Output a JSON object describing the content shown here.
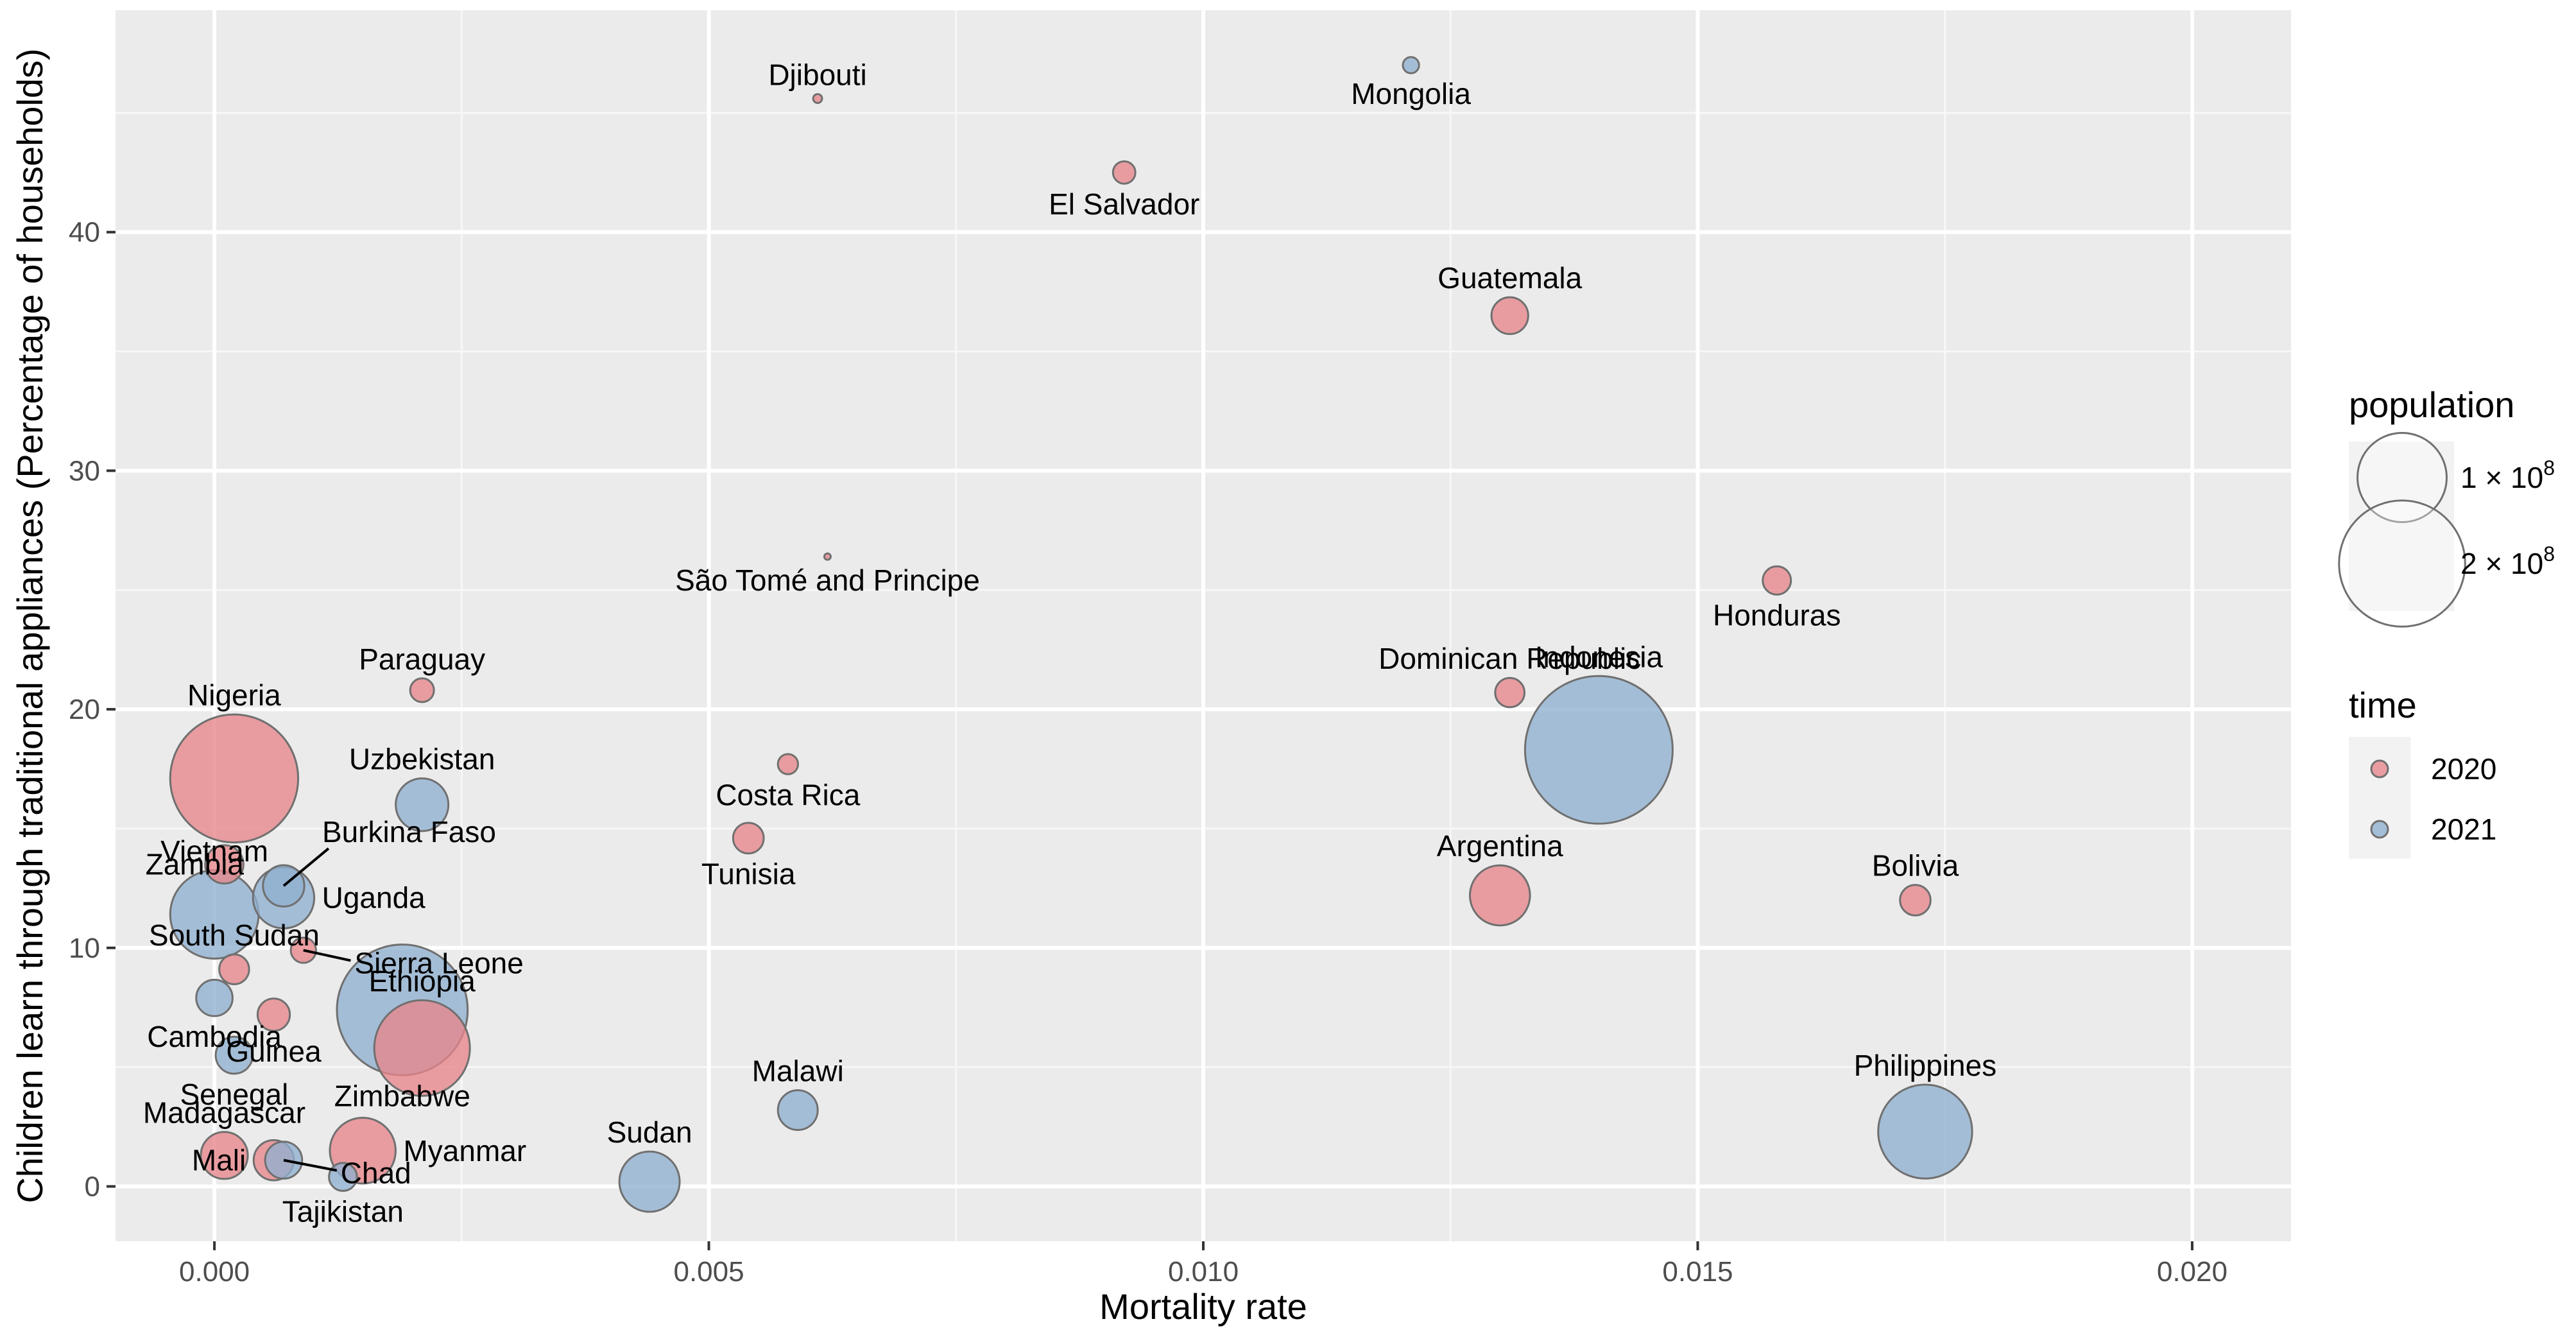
{
  "chart_data": {
    "type": "scatter",
    "title": "",
    "xlabel": "Mortality rate",
    "ylabel": "Children learn through traditional appliances (Percentage of households)",
    "xlim": [
      -0.001,
      0.021
    ],
    "ylim": [
      -2.3,
      49.3
    ],
    "grid": true,
    "x_ticks": [
      0.0,
      0.005,
      0.01,
      0.015,
      0.02
    ],
    "x_tick_labels": [
      "0.000",
      "0.005",
      "0.010",
      "0.015",
      "0.020"
    ],
    "y_ticks": [
      0,
      10,
      20,
      30,
      40
    ],
    "y_tick_labels": [
      "0",
      "10",
      "20",
      "30",
      "40"
    ],
    "size_variable": "population",
    "color_variable": "time",
    "legend": {
      "position": "right",
      "size_title": "population",
      "size_entries": [
        {
          "label": "1 × 10",
          "exponent": "8",
          "value": 100000000
        },
        {
          "label": "2 × 10",
          "exponent": "8",
          "value": 200000000
        }
      ],
      "color_title": "time",
      "color_entries": [
        {
          "label": "2020",
          "color": "#e7858a"
        },
        {
          "label": "2021",
          "color": "#8fafcf"
        }
      ]
    },
    "series": [
      {
        "name": "2020",
        "color": "#e7858a",
        "points": [
          {
            "label": "Djibouti",
            "x": 0.0061,
            "y": 45.6,
            "population": 1000000,
            "label_pos": "above"
          },
          {
            "label": "El Salvador",
            "x": 0.0092,
            "y": 42.5,
            "population": 6300000,
            "label_pos": "below"
          },
          {
            "label": "Guatemala",
            "x": 0.0131,
            "y": 36.5,
            "population": 17000000,
            "label_pos": "above"
          },
          {
            "label": "São Tomé and Principe",
            "x": 0.0062,
            "y": 26.4,
            "population": 200000,
            "label_pos": "below"
          },
          {
            "label": "Honduras",
            "x": 0.0158,
            "y": 25.4,
            "population": 10000000,
            "label_pos": "below"
          },
          {
            "label": "Paraguay",
            "x": 0.0021,
            "y": 20.8,
            "population": 7100000,
            "label_pos": "above"
          },
          {
            "label": "Dominican Republic",
            "x": 0.0131,
            "y": 20.7,
            "population": 10800000,
            "label_pos": "above"
          },
          {
            "label": "Nigeria",
            "x": 0.0002,
            "y": 17.1,
            "population": 206000000,
            "label_pos": "above"
          },
          {
            "label": "Costa Rica",
            "x": 0.0058,
            "y": 17.7,
            "population": 5100000,
            "label_pos": "below"
          },
          {
            "label": "Tunisia",
            "x": 0.0054,
            "y": 14.6,
            "population": 11800000,
            "label_pos": "below"
          },
          {
            "label": "Zambia",
            "x": 0.0001,
            "y": 13.5,
            "population": 18400000,
            "label_pos": "left"
          },
          {
            "label": "Argentina",
            "x": 0.013,
            "y": 12.2,
            "population": 45400000,
            "label_pos": "above"
          },
          {
            "label": "Bolivia",
            "x": 0.0172,
            "y": 12.0,
            "population": 11700000,
            "label_pos": "above"
          },
          {
            "label": "Sierra Leone",
            "x": 0.0009,
            "y": 9.9,
            "population": 8000000,
            "label_pos": "right-leader"
          },
          {
            "label": "South Sudan",
            "x": 0.0002,
            "y": 9.1,
            "population": 11200000,
            "label_pos": "above"
          },
          {
            "label": "Guinea",
            "x": 0.0006,
            "y": 7.2,
            "population": 13100000,
            "label_pos": "below"
          },
          {
            "label": "Ethiopia",
            "x": 0.0021,
            "y": 5.8,
            "population": 115000000,
            "label_pos": "above"
          },
          {
            "label": "Madagascar",
            "x": 0.0001,
            "y": 1.3,
            "population": 27700000,
            "label_pos": "above"
          },
          {
            "label": "Mali",
            "x": 0.0006,
            "y": 1.1,
            "population": 20300000,
            "label_pos": "left"
          },
          {
            "label": "Myanmar",
            "x": 0.0015,
            "y": 1.5,
            "population": 54400000,
            "label_pos": "right"
          }
        ]
      },
      {
        "name": "2021",
        "color": "#8fafcf",
        "points": [
          {
            "label": "Mongolia",
            "x": 0.0121,
            "y": 47.0,
            "population": 3300000,
            "label_pos": "below"
          },
          {
            "label": "Indonesia",
            "x": 0.014,
            "y": 18.3,
            "population": 274000000,
            "label_pos": "above"
          },
          {
            "label": "Uzbekistan",
            "x": 0.0021,
            "y": 16.0,
            "population": 34900000,
            "label_pos": "above"
          },
          {
            "label": "Burkina Faso",
            "x": 0.0007,
            "y": 12.6,
            "population": 21500000,
            "label_pos": "above-leader"
          },
          {
            "label": "Uganda",
            "x": 0.0007,
            "y": 12.1,
            "population": 47100000,
            "label_pos": "right"
          },
          {
            "label": "Vietnam",
            "x": 0.0,
            "y": 11.4,
            "population": 98200000,
            "label_pos": "above"
          },
          {
            "label": "Cambodia",
            "x": 0.0,
            "y": 7.9,
            "population": 16600000,
            "label_pos": "below"
          },
          {
            "label": "Senegal",
            "x": 0.0002,
            "y": 5.5,
            "population": 17200000,
            "label_pos": "below"
          },
          {
            "label": "Zimbabwe",
            "x": 0.0019,
            "y": 7.4,
            "population": 215000000,
            "label_pos": "below"
          },
          {
            "label": "Malawi",
            "x": 0.0059,
            "y": 3.2,
            "population": 19900000,
            "label_pos": "above"
          },
          {
            "label": "Chad",
            "x": 0.0007,
            "y": 1.1,
            "population": 17200000,
            "label_pos": "right-leader"
          },
          {
            "label": "Philippines",
            "x": 0.0173,
            "y": 2.3,
            "population": 111000000,
            "label_pos": "above"
          },
          {
            "label": "Sudan",
            "x": 0.0044,
            "y": 0.2,
            "population": 45700000,
            "label_pos": "above"
          },
          {
            "label": "Tajikistan",
            "x": 0.0013,
            "y": 0.4,
            "population": 9800000,
            "label_pos": "below"
          }
        ]
      }
    ]
  }
}
